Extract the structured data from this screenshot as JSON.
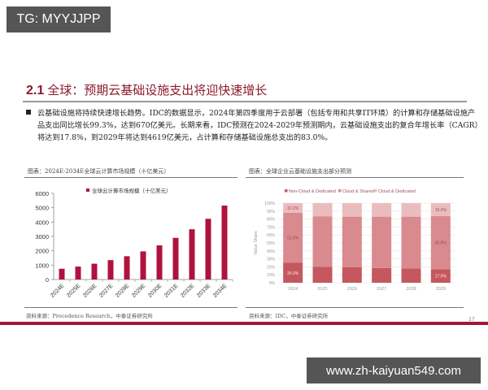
{
  "watermarks": {
    "top": "TG: MYYJJPP",
    "bottom": "www.zh-kaiyuan549.com"
  },
  "section": {
    "number": "2.1",
    "title": "全球：预期云基础设施支出将迎快速增长"
  },
  "bullet": {
    "text": "云基础设施将持续快速增长趋势。IDC的数据显示，2024年第四季度用于云部署（包括专用和共享IT环境）的计算和存储基础设施产品支出同比增长99.3%，达到670亿美元。长期来看，IDC预测在2024-2029年预测期内，云基础设施支出的复合年增长率（CAGR）将达到17.8%，到2029年将达到4619亿美元，占计算和存储基础设施总支出的83.0%。"
  },
  "left_figure": {
    "caption": "图表：2024E-2034E全球云计算市场规模（十亿美元）",
    "source": "资料来源：Precedence Research，中泰证券研究所"
  },
  "right_figure": {
    "caption": "图表：全球企业云基础设施支出部分预测",
    "source": "资料来源：IDC，中泰证券研究所"
  },
  "page_number": "17",
  "colors": {
    "accent_red": "#a01935",
    "bar_red": "#b0123e",
    "non_cloud": "#c4585e",
    "cloud_shared": "#d98a8e",
    "cloud_dedicated": "#ebbcbe"
  },
  "chart_data": [
    {
      "type": "bar",
      "title": "2024E-2034E全球云计算市场规模（十亿美元）",
      "legend": [
        "全球云计算市场规模（十亿美元）"
      ],
      "legend_position": "top",
      "categories": [
        "2024E",
        "2025E",
        "2026E",
        "2027E",
        "2028E",
        "2029E",
        "2030E",
        "2031E",
        "2032E",
        "2033E",
        "2034E"
      ],
      "values": [
        750,
        900,
        1100,
        1350,
        1620,
        1960,
        2380,
        2900,
        3500,
        4230,
        5150
      ],
      "yticks": [
        0,
        1000,
        2000,
        3000,
        4000,
        5000,
        6000
      ],
      "ylim": [
        0,
        6000
      ],
      "xlabel": "",
      "ylabel": "",
      "grid": false
    },
    {
      "type": "bar",
      "stacked": true,
      "title": "全球企业云基础设施支出部分预测",
      "legend": [
        "Non-Cloud & Dedicated",
        "Cloud & Shared",
        "Cloud & Dedicated"
      ],
      "legend_position": "top",
      "categories": [
        "2024",
        "2025",
        "2026",
        "2027",
        "2028",
        "2029"
      ],
      "series": [
        {
          "name": "Non-Cloud & Dedicated",
          "values": [
            25.0,
            20.0,
            19.5,
            18.5,
            18.0,
            17.0
          ]
        },
        {
          "name": "Cloud & Shared",
          "values": [
            62.8,
            63.5,
            63.5,
            64.5,
            65.0,
            66.8
          ]
        },
        {
          "name": "Cloud & Dedicated",
          "values": [
            12.2,
            16.5,
            17.0,
            17.0,
            17.0,
            16.2
          ]
        }
      ],
      "data_labels": {
        "2024": [
          "25.0%",
          "62.8%",
          "12.2%"
        ],
        "2029": [
          "17.0%",
          "66.8%",
          "16.2%"
        ]
      },
      "yticks": [
        "0%",
        "10%",
        "20%",
        "30%",
        "40%",
        "50%",
        "60%",
        "70%",
        "80%",
        "90%",
        "100%"
      ],
      "ylim": [
        0,
        100
      ],
      "ylabel": "Value Share",
      "xlabel": "",
      "grid": true
    }
  ]
}
